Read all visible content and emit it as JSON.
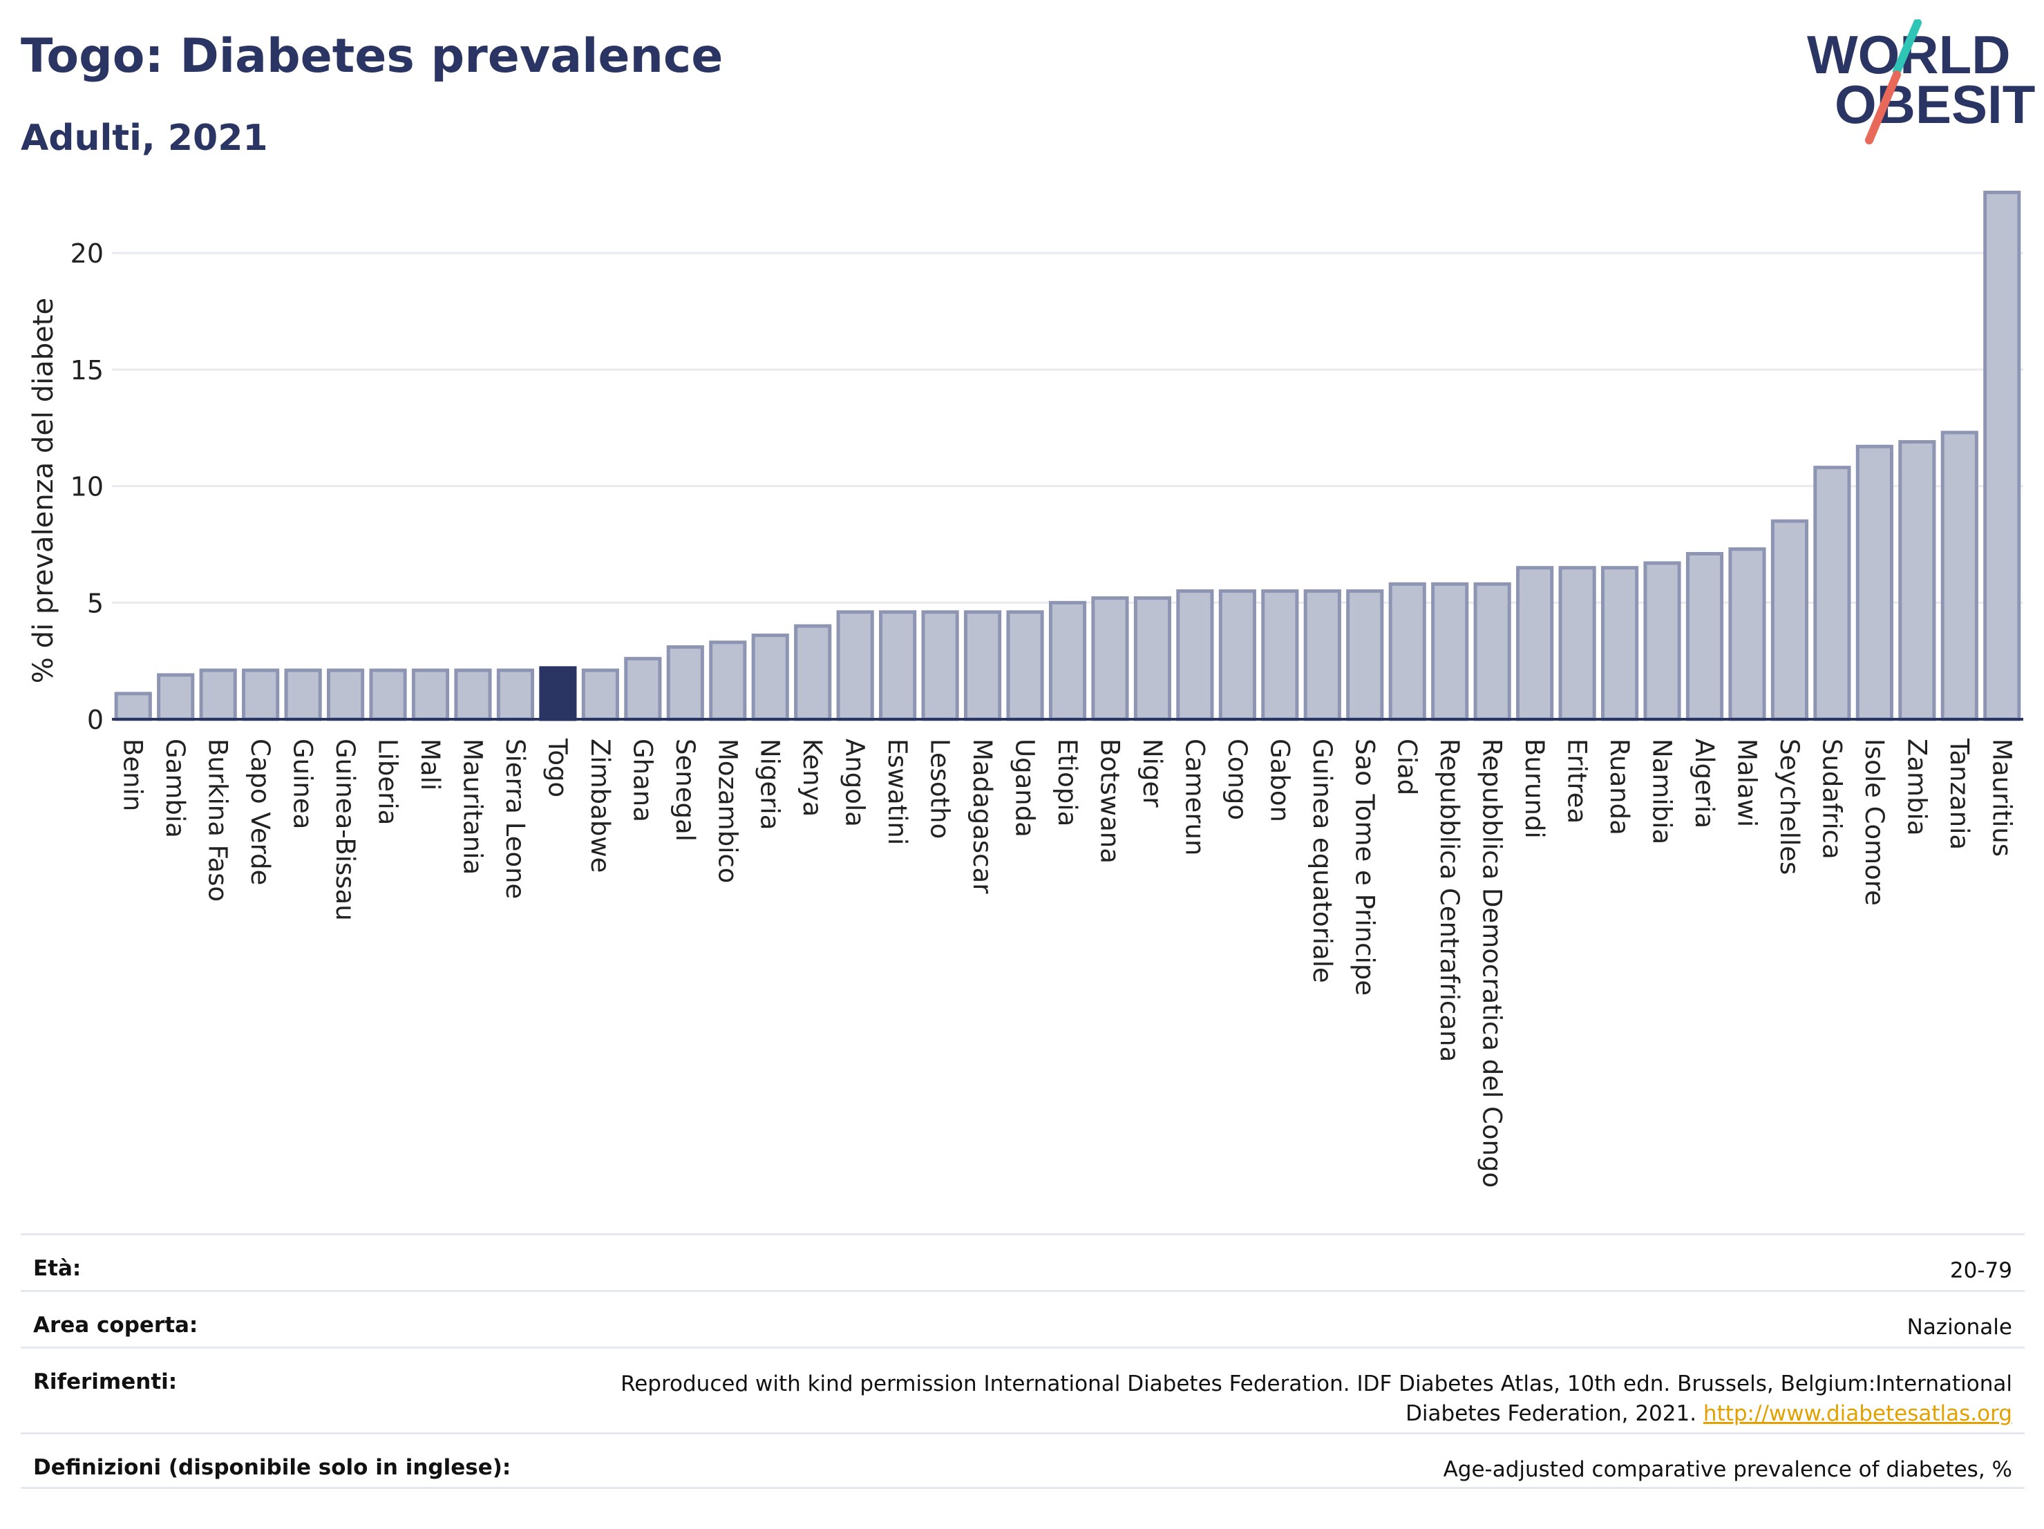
{
  "header": {
    "title": "Togo: Diabetes prevalence",
    "subtitle": "Adulti, 2021"
  },
  "logo": {
    "line1": "WORLD",
    "line2": "OBESITY",
    "accent_teal": "#2ec4b6",
    "accent_red": "#e8685a"
  },
  "colors": {
    "bar": "#bcc1d2",
    "bar_stroke": "#8d95b3",
    "highlight": "#2a3563",
    "grid": "#e8eaf0",
    "text": "#2a3563"
  },
  "chart_data": {
    "type": "bar",
    "ylabel": "% di prevalenza del diabete",
    "ylim": [
      0,
      23
    ],
    "yticks": [
      0,
      5,
      10,
      15,
      20
    ],
    "grid": true,
    "highlight": "Togo",
    "categories": [
      "Benin",
      "Gambia",
      "Burkina Faso",
      "Capo Verde",
      "Guinea",
      "Guinea-Bissau",
      "Liberia",
      "Mali",
      "Mauritania",
      "Sierra Leone",
      "Togo",
      "Zimbabwe",
      "Ghana",
      "Senegal",
      "Mozambico",
      "Nigeria",
      "Kenya",
      "Angola",
      "Eswatini",
      "Lesotho",
      "Madagascar",
      "Uganda",
      "Etiopia",
      "Botswana",
      "Niger",
      "Camerun",
      "Congo",
      "Gabon",
      "Guinea equatoriale",
      "Sao Tome e Principe",
      "Ciad",
      "Repubblica Centrafricana",
      "Repubblica Democratica del Congo",
      "Burundi",
      "Eritrea",
      "Ruanda",
      "Namibia",
      "Algeria",
      "Malawi",
      "Seychelles",
      "Sudafrica",
      "Isole Comore",
      "Zambia",
      "Tanzania",
      "Mauritius"
    ],
    "values": [
      1.1,
      1.9,
      2.1,
      2.1,
      2.1,
      2.1,
      2.1,
      2.1,
      2.1,
      2.1,
      2.2,
      2.1,
      2.6,
      3.1,
      3.3,
      3.6,
      4.0,
      4.6,
      4.6,
      4.6,
      4.6,
      4.6,
      5.0,
      5.2,
      5.2,
      5.5,
      5.5,
      5.5,
      5.5,
      5.5,
      5.8,
      5.8,
      5.8,
      6.5,
      6.5,
      6.5,
      6.7,
      7.1,
      7.3,
      8.5,
      10.8,
      11.7,
      11.9,
      12.3,
      22.6
    ]
  },
  "info": [
    {
      "label": "Età:",
      "value": "20-79"
    },
    {
      "label": "Area coperta:",
      "value": "Nazionale"
    },
    {
      "label": "Riferimenti:",
      "value": "Reproduced with kind permission International Diabetes Federation.  IDF Diabetes Atlas, 10th edn. Brussels, Belgium:International Diabetes Federation, 2021.",
      "link": "http://www.diabetesatlas.org"
    },
    {
      "label": "Definizioni (disponibile solo in inglese):",
      "value": "Age-adjusted comparative prevalence of diabetes, %"
    }
  ]
}
